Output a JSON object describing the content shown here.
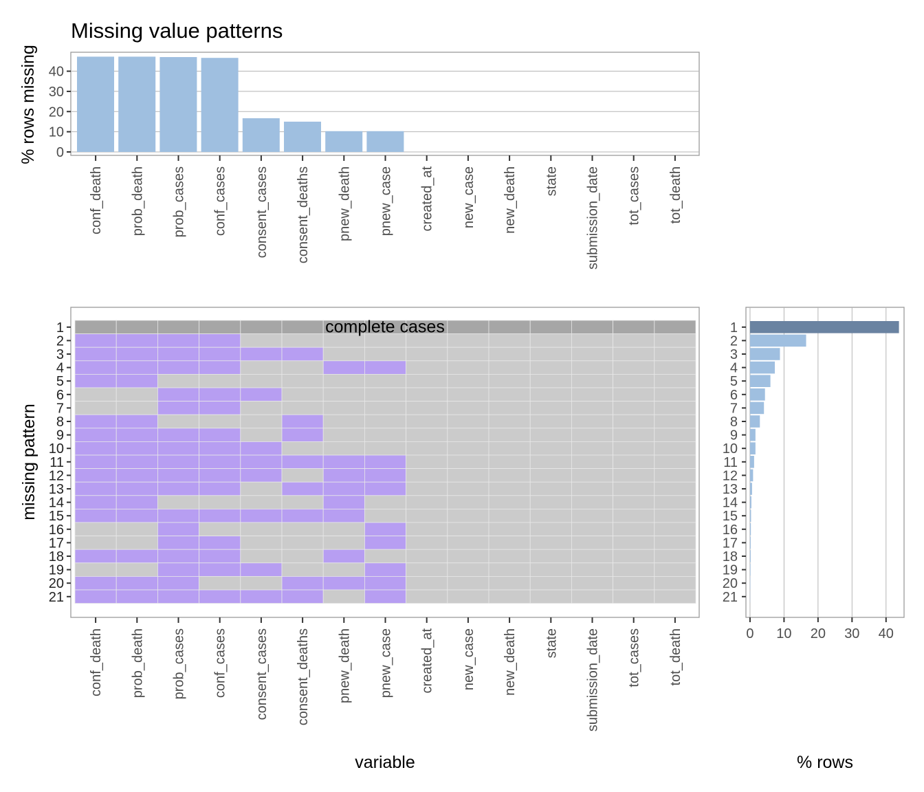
{
  "chart_data": [
    {
      "type": "bar",
      "title": "Missing value patterns",
      "ylabel": "% rows missing",
      "ylim": [
        0,
        47
      ],
      "yticks": [
        0,
        10,
        20,
        30,
        40
      ],
      "categories": [
        "conf_death",
        "prob_death",
        "prob_cases",
        "conf_cases",
        "consent_cases",
        "consent_deaths",
        "pnew_death",
        "pnew_case",
        "created_at",
        "new_case",
        "new_death",
        "state",
        "submission_date",
        "tot_cases",
        "tot_death"
      ],
      "values": [
        47.2,
        47.2,
        47.0,
        46.6,
        16.7,
        15.0,
        10.3,
        10.3,
        0,
        0,
        0,
        0,
        0,
        0,
        0
      ],
      "bar_color": "#9fbfe0"
    },
    {
      "type": "heatmap",
      "xlabel": "variable",
      "ylabel": "missing pattern",
      "annotation": "complete cases",
      "variables": [
        "conf_death",
        "prob_death",
        "prob_cases",
        "conf_cases",
        "consent_cases",
        "consent_deaths",
        "pnew_death",
        "pnew_case",
        "created_at",
        "new_case",
        "new_death",
        "state",
        "submission_date",
        "tot_cases",
        "tot_death"
      ],
      "patterns": [
        "1",
        "2",
        "3",
        "4",
        "5",
        "6",
        "7",
        "8",
        "9",
        "10",
        "11",
        "12",
        "13",
        "14",
        "15",
        "16",
        "17",
        "18",
        "19",
        "20",
        "21"
      ],
      "missing": [
        [
          0,
          0,
          0,
          0,
          0,
          0,
          0,
          0,
          0,
          0,
          0,
          0,
          0,
          0,
          0
        ],
        [
          1,
          1,
          1,
          1,
          0,
          0,
          0,
          0,
          0,
          0,
          0,
          0,
          0,
          0,
          0
        ],
        [
          1,
          1,
          1,
          1,
          1,
          1,
          0,
          0,
          0,
          0,
          0,
          0,
          0,
          0,
          0
        ],
        [
          1,
          1,
          1,
          1,
          0,
          0,
          1,
          1,
          0,
          0,
          0,
          0,
          0,
          0,
          0
        ],
        [
          1,
          1,
          0,
          0,
          0,
          0,
          0,
          0,
          0,
          0,
          0,
          0,
          0,
          0,
          0
        ],
        [
          0,
          0,
          1,
          1,
          1,
          0,
          0,
          0,
          0,
          0,
          0,
          0,
          0,
          0,
          0
        ],
        [
          0,
          0,
          1,
          1,
          0,
          0,
          0,
          0,
          0,
          0,
          0,
          0,
          0,
          0,
          0
        ],
        [
          1,
          1,
          0,
          0,
          0,
          1,
          0,
          0,
          0,
          0,
          0,
          0,
          0,
          0,
          0
        ],
        [
          1,
          1,
          1,
          1,
          0,
          1,
          0,
          0,
          0,
          0,
          0,
          0,
          0,
          0,
          0
        ],
        [
          1,
          1,
          1,
          1,
          1,
          0,
          0,
          0,
          0,
          0,
          0,
          0,
          0,
          0,
          0
        ],
        [
          1,
          1,
          1,
          1,
          1,
          1,
          1,
          1,
          0,
          0,
          0,
          0,
          0,
          0,
          0
        ],
        [
          1,
          1,
          1,
          1,
          1,
          0,
          1,
          1,
          0,
          0,
          0,
          0,
          0,
          0,
          0
        ],
        [
          1,
          1,
          1,
          1,
          0,
          1,
          1,
          1,
          0,
          0,
          0,
          0,
          0,
          0,
          0
        ],
        [
          1,
          1,
          0,
          0,
          0,
          0,
          1,
          0,
          0,
          0,
          0,
          0,
          0,
          0,
          0
        ],
        [
          1,
          1,
          1,
          1,
          1,
          1,
          1,
          0,
          0,
          0,
          0,
          0,
          0,
          0,
          0
        ],
        [
          0,
          0,
          1,
          0,
          0,
          0,
          0,
          1,
          0,
          0,
          0,
          0,
          0,
          0,
          0
        ],
        [
          0,
          0,
          1,
          1,
          0,
          0,
          0,
          1,
          0,
          0,
          0,
          0,
          0,
          0,
          0
        ],
        [
          1,
          1,
          1,
          1,
          0,
          0,
          1,
          0,
          0,
          0,
          0,
          0,
          0,
          0,
          0
        ],
        [
          0,
          0,
          1,
          1,
          1,
          0,
          0,
          1,
          0,
          0,
          0,
          0,
          0,
          0,
          0
        ],
        [
          1,
          1,
          1,
          0,
          0,
          1,
          1,
          1,
          0,
          0,
          0,
          0,
          0,
          0,
          0
        ],
        [
          1,
          1,
          1,
          1,
          1,
          1,
          0,
          1,
          0,
          0,
          0,
          0,
          0,
          0,
          0
        ]
      ],
      "colors": {
        "missing": "#b79ef2",
        "present": "#cbcbcb",
        "complete": "#a6a6a6"
      }
    },
    {
      "type": "bar",
      "orientation": "horizontal",
      "xlabel": "% rows",
      "xlim": [
        -1.2,
        45.3
      ],
      "xticks": [
        0,
        10,
        20,
        30,
        40
      ],
      "categories": [
        "1",
        "2",
        "3",
        "4",
        "5",
        "6",
        "7",
        "8",
        "9",
        "10",
        "11",
        "12",
        "13",
        "14",
        "15",
        "16",
        "17",
        "18",
        "19",
        "20",
        "21"
      ],
      "values": [
        43.8,
        16.5,
        8.8,
        7.3,
        6.0,
        4.4,
        4.1,
        2.9,
        1.6,
        1.6,
        1.2,
        0.9,
        0.6,
        0.4,
        0.3,
        0.25,
        0.2,
        0.2,
        0.15,
        0.1,
        0.05
      ],
      "colors": {
        "highlight": "#6a83a1",
        "bar": "#9fbfe0"
      }
    }
  ]
}
